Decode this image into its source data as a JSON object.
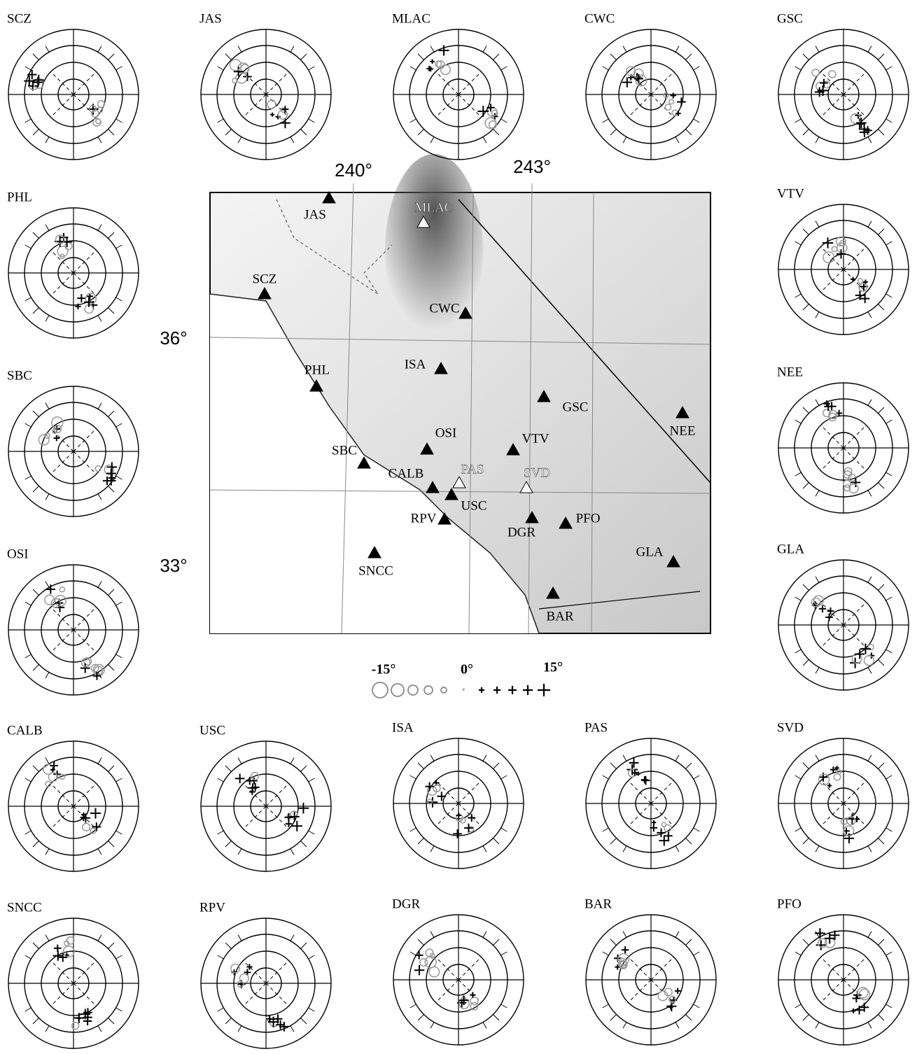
{
  "panels": [
    {
      "label": "SCZ"
    },
    {
      "label": "JAS"
    },
    {
      "label": "MLAC"
    },
    {
      "label": "CWC"
    },
    {
      "label": "GSC"
    },
    {
      "label": "PHL"
    },
    {
      "label": "VTV"
    },
    {
      "label": "SBC"
    },
    {
      "label": "NEE"
    },
    {
      "label": "OSI"
    },
    {
      "label": "GLA"
    },
    {
      "label": "CALB"
    },
    {
      "label": "USC"
    },
    {
      "label": "ISA"
    },
    {
      "label": "PAS"
    },
    {
      "label": "SVD"
    },
    {
      "label": "SNCC"
    },
    {
      "label": "RPV"
    },
    {
      "label": "DGR"
    },
    {
      "label": "BAR"
    },
    {
      "label": "PFO"
    }
  ],
  "map": {
    "lon_labels": [
      "240°",
      "243°"
    ],
    "lat_labels": [
      "36°",
      "33°"
    ],
    "stations": [
      {
        "label": "JAS"
      },
      {
        "label": "MLAC"
      },
      {
        "label": "SCZ"
      },
      {
        "label": "CWC"
      },
      {
        "label": "ISA"
      },
      {
        "label": "PHL"
      },
      {
        "label": "GSC"
      },
      {
        "label": "NEE"
      },
      {
        "label": "OSI"
      },
      {
        "label": "VTV"
      },
      {
        "label": "SBC"
      },
      {
        "label": "CALB"
      },
      {
        "label": "PAS"
      },
      {
        "label": "SVD"
      },
      {
        "label": "USC"
      },
      {
        "label": "RPV"
      },
      {
        "label": "DGR"
      },
      {
        "label": "PFO"
      },
      {
        "label": "GLA"
      },
      {
        "label": "SNCC"
      },
      {
        "label": "BAR"
      }
    ]
  },
  "legend": {
    "labels": [
      "-15°",
      "0°",
      "15°"
    ]
  }
}
